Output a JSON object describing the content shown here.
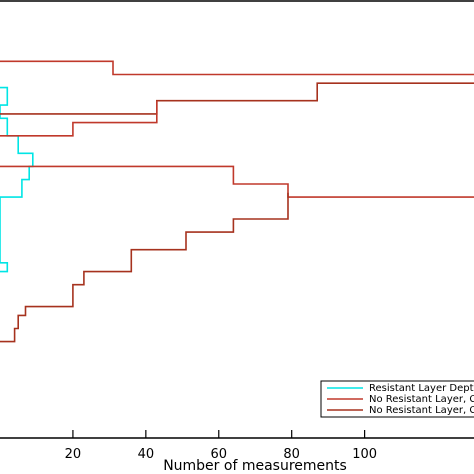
{
  "chart_data": {
    "type": "line",
    "xlabel": "Number of measurements",
    "ylabel": "",
    "xlim": [
      0,
      130
    ],
    "ylim": [
      0,
      100
    ],
    "x_ticks": [
      {
        "value": 20,
        "label": "20"
      },
      {
        "value": 40,
        "label": "40"
      },
      {
        "value": 60,
        "label": "60"
      },
      {
        "value": 80,
        "label": "80"
      },
      {
        "value": 100,
        "label": "100"
      }
    ],
    "grid": false,
    "legend_position": "bottom-right",
    "series": [
      {
        "name": "Resistant Layer Depth",
        "color": "#00e5e5",
        "style": "step",
        "points": [
          [
            0,
            80
          ],
          [
            2,
            80
          ],
          [
            2,
            76
          ],
          [
            0,
            76
          ],
          [
            0,
            73
          ],
          [
            2,
            73
          ],
          [
            2,
            69
          ],
          [
            5,
            69
          ],
          [
            5,
            65
          ],
          [
            9,
            65
          ],
          [
            9,
            62
          ],
          [
            8,
            62
          ],
          [
            8,
            59
          ],
          [
            6,
            59
          ],
          [
            6,
            55
          ],
          [
            0,
            55
          ],
          [
            0,
            40
          ],
          [
            2,
            40
          ],
          [
            2,
            38
          ],
          [
            0,
            38
          ]
        ]
      },
      {
        "name": "No Resistant Layer, C",
        "color": "#c0392b",
        "style": "step",
        "points": [
          [
            0,
            86
          ],
          [
            31,
            86
          ],
          [
            31,
            83
          ],
          [
            130,
            83
          ]
        ]
      },
      {
        "name": "No Resistant Layer, C",
        "color": "#a6321e",
        "style": "step",
        "points": [
          [
            0,
            74
          ],
          [
            43,
            74
          ],
          [
            43,
            77
          ],
          [
            87,
            77
          ],
          [
            87,
            81
          ],
          [
            130,
            81
          ]
        ]
      },
      {
        "name": "No Resistant Layer, C",
        "color": "#c0392b",
        "style": "step",
        "points": [
          [
            0,
            69
          ],
          [
            20,
            69
          ],
          [
            20,
            72
          ],
          [
            43,
            72
          ],
          [
            43,
            77
          ]
        ]
      },
      {
        "name": "",
        "color": "#c0392b",
        "style": "step",
        "points": [
          [
            0,
            62
          ],
          [
            64,
            62
          ],
          [
            64,
            58
          ],
          [
            79,
            58
          ],
          [
            79,
            55
          ],
          [
            130,
            55
          ]
        ]
      },
      {
        "name": "",
        "color": "#a6321e",
        "style": "step",
        "points": [
          [
            0,
            22
          ],
          [
            4,
            22
          ],
          [
            4,
            25
          ],
          [
            5,
            25
          ],
          [
            5,
            28
          ],
          [
            7,
            28
          ],
          [
            7,
            30
          ],
          [
            20,
            30
          ],
          [
            20,
            35
          ],
          [
            23,
            35
          ],
          [
            23,
            38
          ],
          [
            36,
            38
          ],
          [
            36,
            43
          ],
          [
            51,
            43
          ],
          [
            51,
            47
          ],
          [
            64,
            47
          ],
          [
            64,
            50
          ],
          [
            79,
            50
          ],
          [
            79,
            56
          ]
        ]
      }
    ]
  }
}
